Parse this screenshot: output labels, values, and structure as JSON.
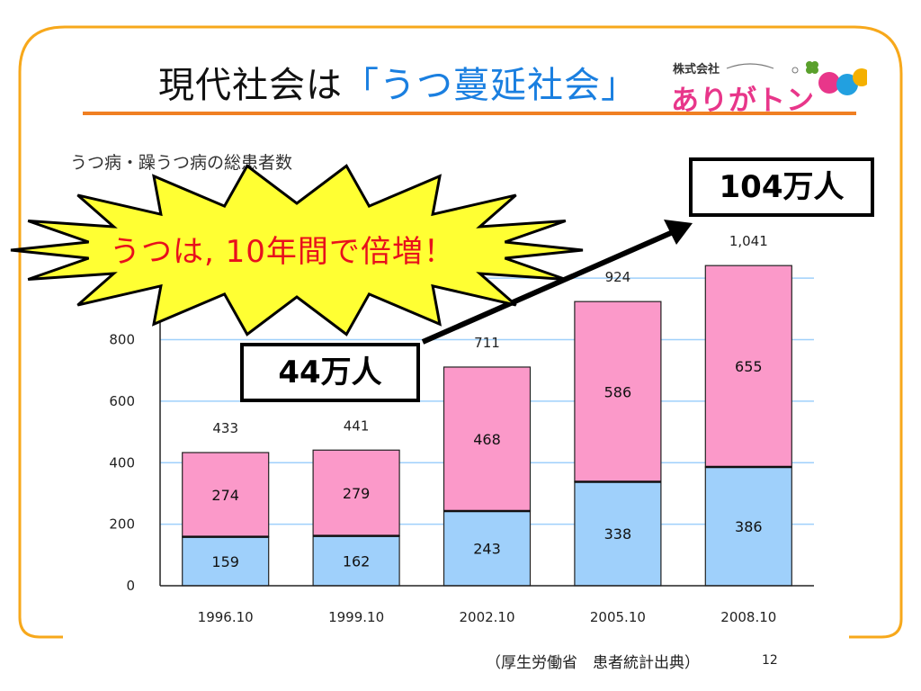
{
  "slide": {
    "title_plain": "現代社会は",
    "title_highlight": "「うつ蔓延社会」",
    "logo_company": "株式会社",
    "logo_name": "ありがトン",
    "chart_heading": "うつ病・躁うつ病の総患者数",
    "source": "（厚生労働省　患者統計出典）",
    "page_number": "12",
    "burst_text": "うつは, 10年間で倍増！",
    "callout_start": "44万人",
    "callout_end": "104万人",
    "colors": {
      "frame": "#f7a81b",
      "rule": "#f07f22",
      "title_highlight": "#1a7fe0",
      "burst_fill": "#ffff33",
      "burst_text": "#e8101c"
    }
  },
  "chart_data": {
    "type": "bar",
    "stacked": true,
    "categories": [
      "1996.10",
      "1999.10",
      "2002.10",
      "2005.10",
      "2008.10"
    ],
    "series": [
      {
        "values": [
          159,
          162,
          243,
          338,
          386
        ],
        "color": "#9fd0fb"
      },
      {
        "values": [
          274,
          279,
          468,
          586,
          655
        ],
        "color": "#fb99c9"
      }
    ],
    "totals": [
      "433",
      "441",
      "711",
      "924",
      "1,041"
    ],
    "y_ticks": [
      0,
      200,
      400,
      600,
      800
    ],
    "ylim": [
      0,
      1100
    ],
    "grid": true,
    "gridline_color": "#9fd0fb"
  }
}
